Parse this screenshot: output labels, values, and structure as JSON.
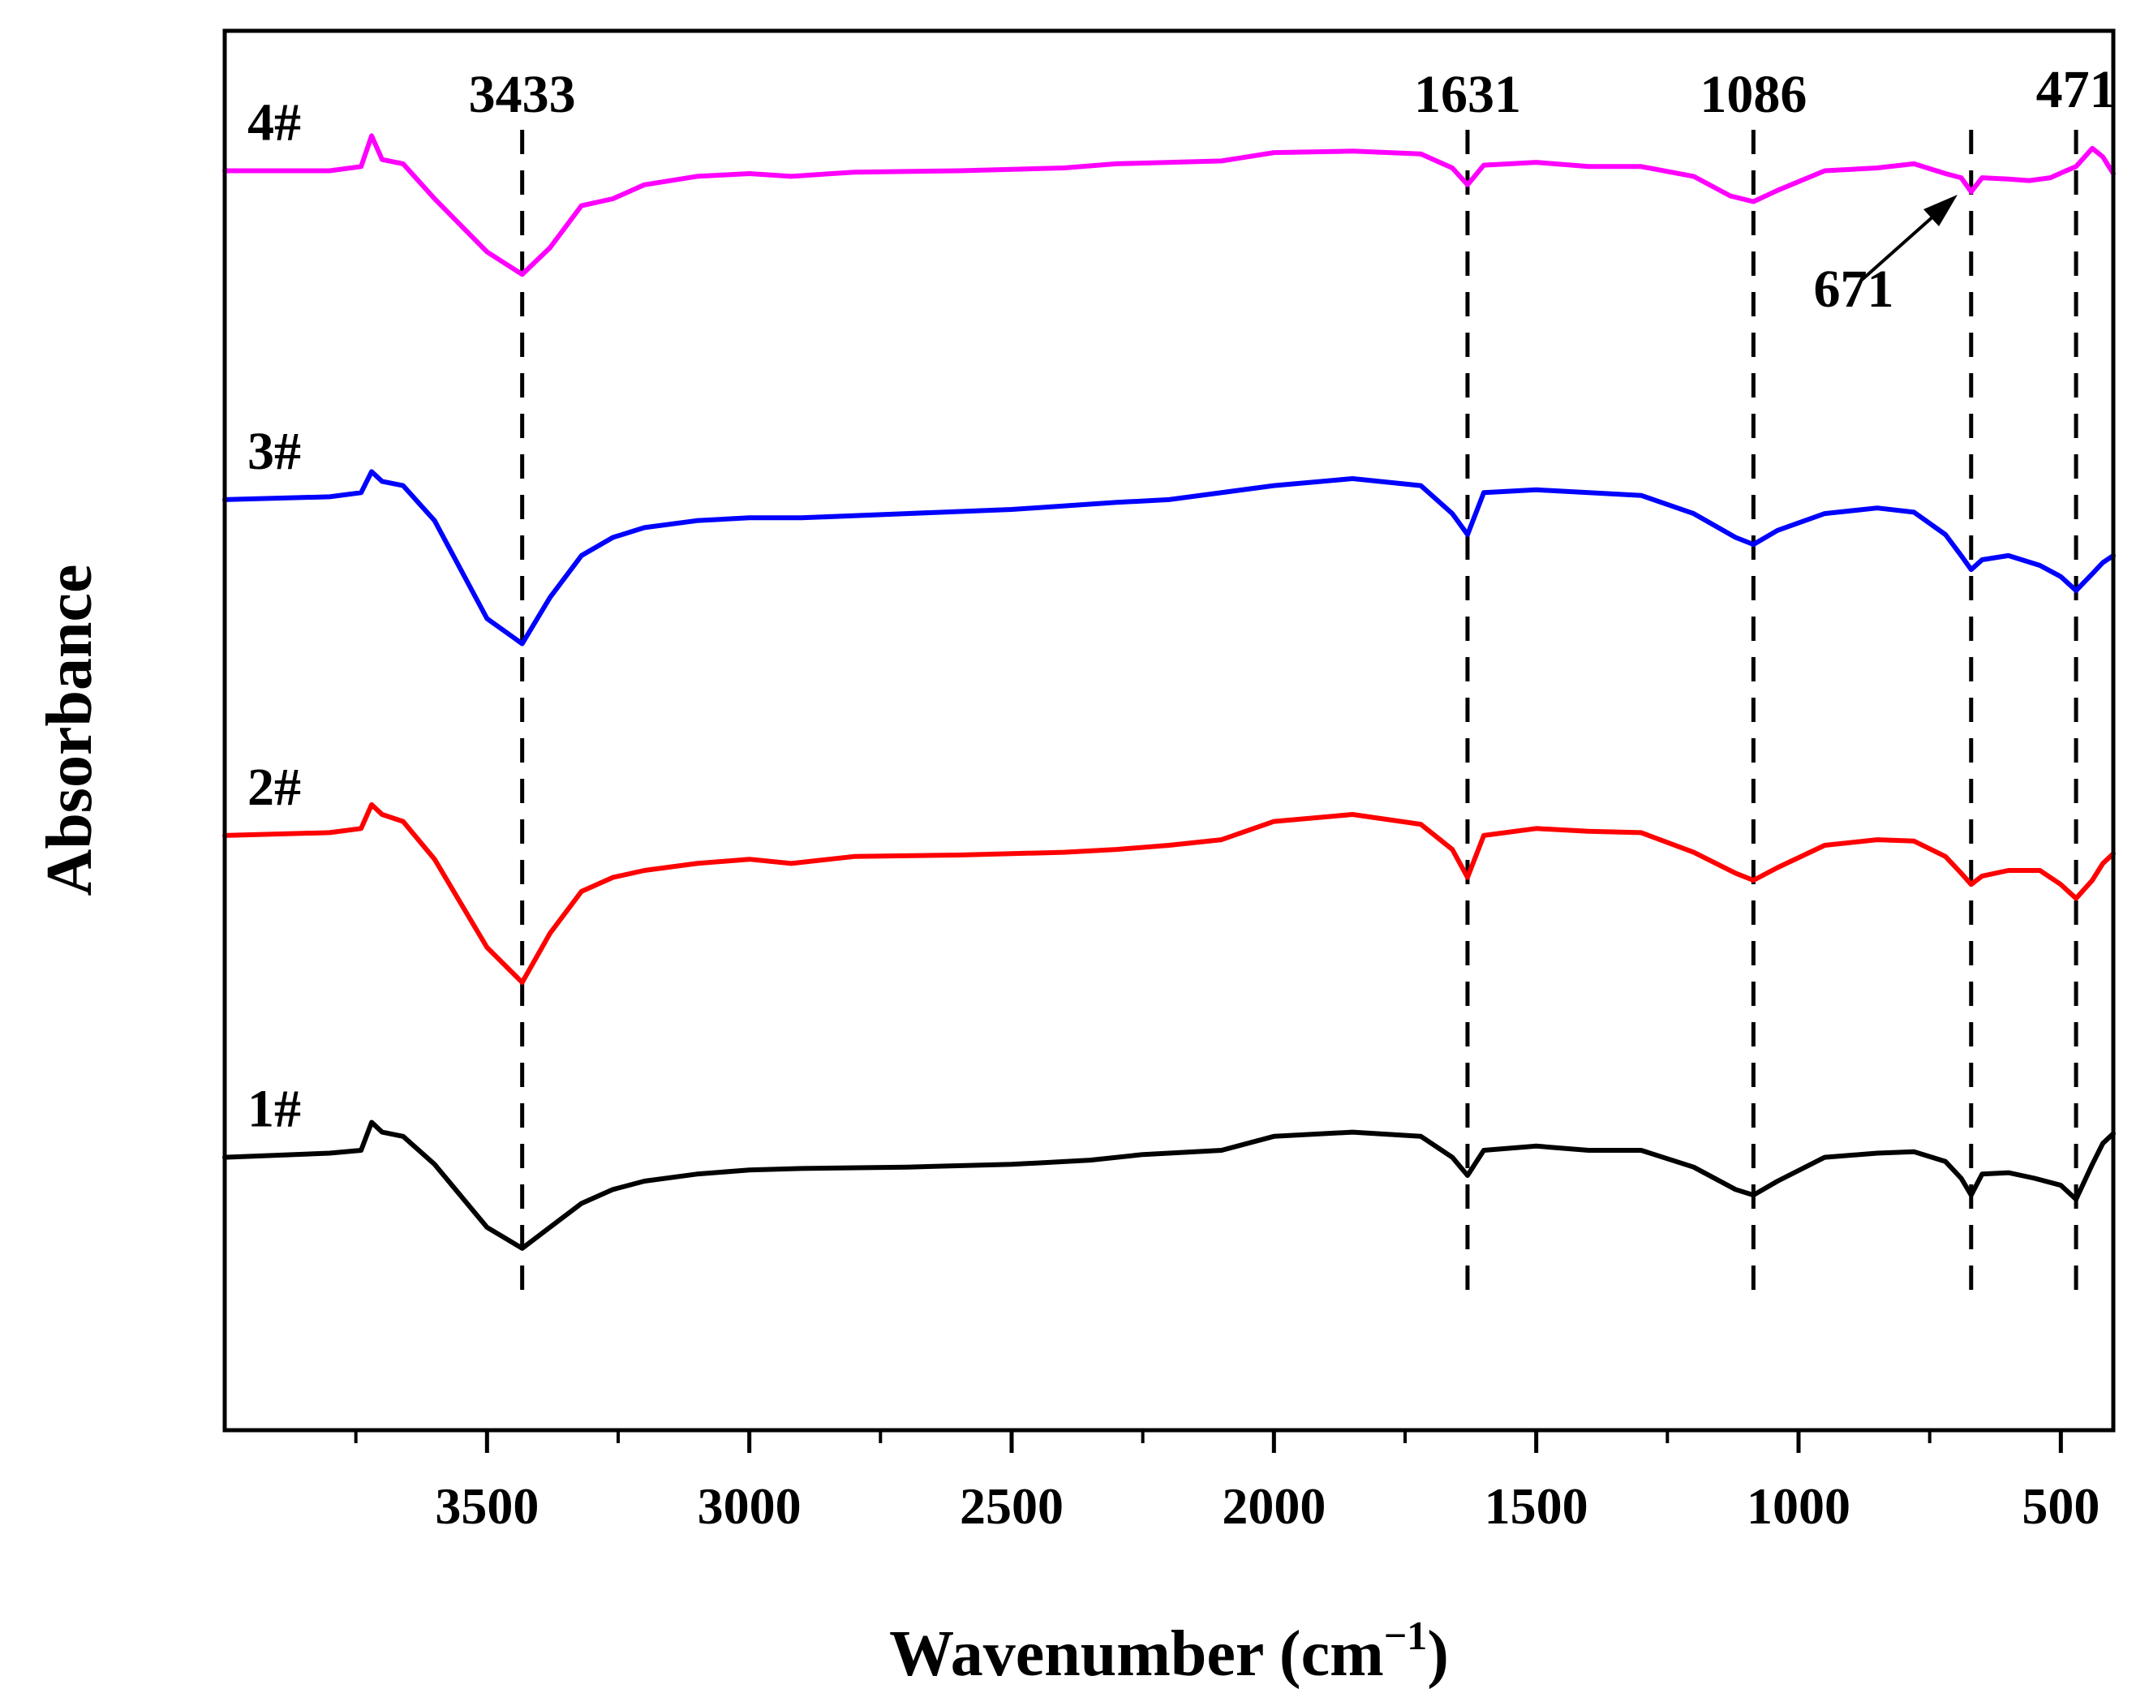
{
  "chart_data": {
    "type": "line",
    "title": "",
    "xlabel": "Wavenumber (cm",
    "xlabel_sup": "−1",
    "xlabel_close": ")",
    "ylabel": "Absorbance",
    "xlim": [
      4000,
      400
    ],
    "x_reversed": true,
    "ylim": [
      0,
      1
    ],
    "yticks_shown": false,
    "grid": false,
    "x_ticks": [
      3500,
      3000,
      2500,
      2000,
      1500,
      1000,
      500
    ],
    "x_tick_labels": [
      "3500",
      "3000",
      "2500",
      "2000",
      "1500",
      "1000",
      "500"
    ],
    "peak_markers": [
      {
        "x": 3433,
        "label": "3433"
      },
      {
        "x": 1631,
        "label": "1631"
      },
      {
        "x": 1086,
        "label": "1086"
      },
      {
        "x": 671,
        "label": "671"
      },
      {
        "x": 471,
        "label": "471"
      }
    ],
    "series": [
      {
        "name": "4#",
        "color": "#ff00ff",
        "points": [
          [
            4000,
            0.9
          ],
          [
            3800,
            0.9
          ],
          [
            3740,
            0.903
          ],
          [
            3720,
            0.925
          ],
          [
            3700,
            0.908
          ],
          [
            3660,
            0.905
          ],
          [
            3600,
            0.88
          ],
          [
            3500,
            0.842
          ],
          [
            3433,
            0.826
          ],
          [
            3380,
            0.845
          ],
          [
            3320,
            0.875
          ],
          [
            3260,
            0.88
          ],
          [
            3200,
            0.89
          ],
          [
            3100,
            0.896
          ],
          [
            3000,
            0.898
          ],
          [
            2920,
            0.896
          ],
          [
            2800,
            0.899
          ],
          [
            2600,
            0.9
          ],
          [
            2400,
            0.902
          ],
          [
            2300,
            0.905
          ],
          [
            2100,
            0.907
          ],
          [
            2000,
            0.913
          ],
          [
            1850,
            0.914
          ],
          [
            1720,
            0.912
          ],
          [
            1660,
            0.902
          ],
          [
            1631,
            0.89
          ],
          [
            1600,
            0.904
          ],
          [
            1500,
            0.906
          ],
          [
            1400,
            0.903
          ],
          [
            1300,
            0.903
          ],
          [
            1200,
            0.896
          ],
          [
            1130,
            0.882
          ],
          [
            1086,
            0.878
          ],
          [
            1040,
            0.886
          ],
          [
            950,
            0.9
          ],
          [
            850,
            0.902
          ],
          [
            780,
            0.905
          ],
          [
            720,
            0.898
          ],
          [
            690,
            0.895
          ],
          [
            671,
            0.885
          ],
          [
            650,
            0.895
          ],
          [
            600,
            0.894
          ],
          [
            560,
            0.893
          ],
          [
            520,
            0.895
          ],
          [
            490,
            0.9
          ],
          [
            471,
            0.903
          ],
          [
            440,
            0.916
          ],
          [
            420,
            0.91
          ],
          [
            400,
            0.898
          ]
        ]
      },
      {
        "name": "3#",
        "color": "#0000ff",
        "points": [
          [
            4000,
            0.665
          ],
          [
            3800,
            0.667
          ],
          [
            3740,
            0.67
          ],
          [
            3720,
            0.685
          ],
          [
            3700,
            0.678
          ],
          [
            3660,
            0.675
          ],
          [
            3600,
            0.65
          ],
          [
            3500,
            0.58
          ],
          [
            3433,
            0.562
          ],
          [
            3380,
            0.595
          ],
          [
            3320,
            0.625
          ],
          [
            3260,
            0.638
          ],
          [
            3200,
            0.645
          ],
          [
            3100,
            0.65
          ],
          [
            3000,
            0.652
          ],
          [
            2900,
            0.652
          ],
          [
            2700,
            0.655
          ],
          [
            2500,
            0.658
          ],
          [
            2300,
            0.663
          ],
          [
            2200,
            0.665
          ],
          [
            2000,
            0.675
          ],
          [
            1850,
            0.68
          ],
          [
            1720,
            0.675
          ],
          [
            1660,
            0.655
          ],
          [
            1631,
            0.64
          ],
          [
            1600,
            0.67
          ],
          [
            1500,
            0.672
          ],
          [
            1400,
            0.67
          ],
          [
            1300,
            0.668
          ],
          [
            1200,
            0.655
          ],
          [
            1120,
            0.638
          ],
          [
            1086,
            0.633
          ],
          [
            1040,
            0.643
          ],
          [
            950,
            0.655
          ],
          [
            850,
            0.659
          ],
          [
            780,
            0.656
          ],
          [
            720,
            0.64
          ],
          [
            690,
            0.625
          ],
          [
            671,
            0.615
          ],
          [
            650,
            0.622
          ],
          [
            600,
            0.625
          ],
          [
            540,
            0.618
          ],
          [
            500,
            0.61
          ],
          [
            471,
            0.6
          ],
          [
            440,
            0.612
          ],
          [
            420,
            0.62
          ],
          [
            400,
            0.625
          ]
        ]
      },
      {
        "name": "2#",
        "color": "#ff0000",
        "points": [
          [
            4000,
            0.425
          ],
          [
            3800,
            0.427
          ],
          [
            3740,
            0.43
          ],
          [
            3720,
            0.447
          ],
          [
            3700,
            0.44
          ],
          [
            3660,
            0.435
          ],
          [
            3600,
            0.408
          ],
          [
            3500,
            0.345
          ],
          [
            3433,
            0.32
          ],
          [
            3380,
            0.355
          ],
          [
            3320,
            0.385
          ],
          [
            3260,
            0.395
          ],
          [
            3200,
            0.4
          ],
          [
            3100,
            0.405
          ],
          [
            3000,
            0.408
          ],
          [
            2920,
            0.405
          ],
          [
            2800,
            0.41
          ],
          [
            2600,
            0.411
          ],
          [
            2400,
            0.413
          ],
          [
            2300,
            0.415
          ],
          [
            2200,
            0.418
          ],
          [
            2100,
            0.422
          ],
          [
            2000,
            0.435
          ],
          [
            1850,
            0.44
          ],
          [
            1720,
            0.433
          ],
          [
            1660,
            0.415
          ],
          [
            1631,
            0.395
          ],
          [
            1600,
            0.425
          ],
          [
            1500,
            0.43
          ],
          [
            1400,
            0.428
          ],
          [
            1300,
            0.427
          ],
          [
            1200,
            0.413
          ],
          [
            1120,
            0.398
          ],
          [
            1086,
            0.393
          ],
          [
            1040,
            0.402
          ],
          [
            950,
            0.418
          ],
          [
            850,
            0.422
          ],
          [
            780,
            0.421
          ],
          [
            720,
            0.41
          ],
          [
            690,
            0.398
          ],
          [
            671,
            0.39
          ],
          [
            650,
            0.396
          ],
          [
            600,
            0.4
          ],
          [
            540,
            0.4
          ],
          [
            500,
            0.39
          ],
          [
            471,
            0.38
          ],
          [
            440,
            0.393
          ],
          [
            420,
            0.405
          ],
          [
            400,
            0.412
          ]
        ]
      },
      {
        "name": "1#",
        "color": "#000000",
        "points": [
          [
            4000,
            0.195
          ],
          [
            3800,
            0.198
          ],
          [
            3740,
            0.2
          ],
          [
            3720,
            0.22
          ],
          [
            3700,
            0.213
          ],
          [
            3660,
            0.21
          ],
          [
            3600,
            0.19
          ],
          [
            3500,
            0.145
          ],
          [
            3433,
            0.13
          ],
          [
            3380,
            0.145
          ],
          [
            3320,
            0.162
          ],
          [
            3260,
            0.172
          ],
          [
            3200,
            0.178
          ],
          [
            3100,
            0.183
          ],
          [
            3000,
            0.186
          ],
          [
            2900,
            0.187
          ],
          [
            2700,
            0.188
          ],
          [
            2500,
            0.19
          ],
          [
            2350,
            0.193
          ],
          [
            2250,
            0.197
          ],
          [
            2100,
            0.2
          ],
          [
            2000,
            0.21
          ],
          [
            1850,
            0.213
          ],
          [
            1720,
            0.21
          ],
          [
            1660,
            0.195
          ],
          [
            1631,
            0.182
          ],
          [
            1600,
            0.2
          ],
          [
            1500,
            0.203
          ],
          [
            1400,
            0.2
          ],
          [
            1300,
            0.2
          ],
          [
            1200,
            0.188
          ],
          [
            1120,
            0.172
          ],
          [
            1086,
            0.168
          ],
          [
            1040,
            0.178
          ],
          [
            950,
            0.195
          ],
          [
            850,
            0.198
          ],
          [
            780,
            0.199
          ],
          [
            720,
            0.192
          ],
          [
            690,
            0.18
          ],
          [
            671,
            0.168
          ],
          [
            650,
            0.183
          ],
          [
            600,
            0.184
          ],
          [
            550,
            0.18
          ],
          [
            500,
            0.175
          ],
          [
            471,
            0.165
          ],
          [
            440,
            0.19
          ],
          [
            420,
            0.205
          ],
          [
            400,
            0.212
          ]
        ]
      }
    ]
  }
}
